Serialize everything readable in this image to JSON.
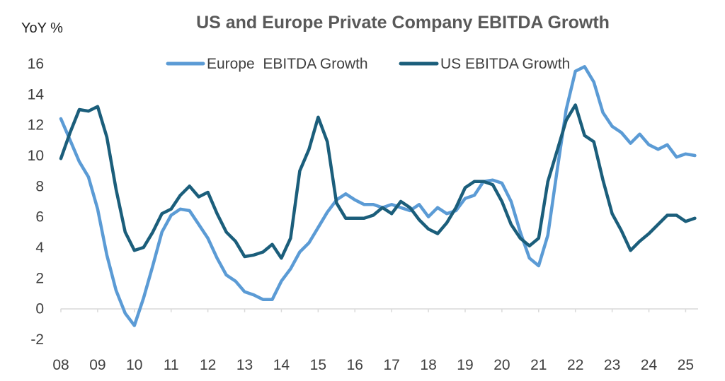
{
  "chart_data": {
    "type": "line",
    "title": "US and Europe Private Company EBITDA Growth",
    "ylabel": "YoY %",
    "xlabel": "",
    "ylim": [
      -2,
      16
    ],
    "xlim": [
      2008,
      2025.3
    ],
    "yticks": [
      "-2",
      "0",
      "2",
      "4",
      "6",
      "8",
      "10",
      "12",
      "14",
      "16"
    ],
    "xticks": [
      "08",
      "09",
      "10",
      "11",
      "12",
      "13",
      "14",
      "15",
      "16",
      "17",
      "18",
      "19",
      "20",
      "21",
      "22",
      "23",
      "24",
      "25"
    ],
    "grid": false,
    "legend_position": "top-center",
    "series": [
      {
        "name": "Europe  EBITDA Growth",
        "color": "#5b9bd5",
        "x": [
          2008.0,
          2008.25,
          2008.5,
          2008.75,
          2009.0,
          2009.25,
          2009.5,
          2009.75,
          2010.0,
          2010.25,
          2010.5,
          2010.75,
          2011.0,
          2011.25,
          2011.5,
          2011.75,
          2012.0,
          2012.25,
          2012.5,
          2012.75,
          2013.0,
          2013.25,
          2013.5,
          2013.75,
          2014.0,
          2014.25,
          2014.5,
          2014.75,
          2015.0,
          2015.25,
          2015.5,
          2015.75,
          2016.0,
          2016.25,
          2016.5,
          2016.75,
          2017.0,
          2017.25,
          2017.5,
          2017.75,
          2018.0,
          2018.25,
          2018.5,
          2018.75,
          2019.0,
          2019.25,
          2019.5,
          2019.75,
          2020.0,
          2020.25,
          2020.5,
          2020.75,
          2021.0,
          2021.25,
          2021.5,
          2021.75,
          2022.0,
          2022.25,
          2022.5,
          2022.75,
          2023.0,
          2023.25,
          2023.5,
          2023.75,
          2024.0,
          2024.25,
          2024.5,
          2024.75,
          2025.0,
          2025.25
        ],
        "values": [
          12.4,
          11.0,
          9.6,
          8.6,
          6.5,
          3.5,
          1.2,
          -0.3,
          -1.1,
          0.7,
          2.8,
          5.0,
          6.1,
          6.5,
          6.4,
          5.5,
          4.6,
          3.3,
          2.2,
          1.8,
          1.1,
          0.9,
          0.6,
          0.6,
          1.8,
          2.6,
          3.7,
          4.3,
          5.3,
          6.3,
          7.1,
          7.5,
          7.1,
          6.8,
          6.8,
          6.6,
          6.8,
          6.6,
          6.4,
          6.8,
          6.0,
          6.6,
          6.2,
          6.4,
          7.2,
          7.4,
          8.3,
          8.4,
          8.2,
          7.0,
          5.0,
          3.3,
          2.8,
          4.8,
          9.0,
          13.0,
          15.5,
          15.8,
          14.8,
          12.8,
          11.9,
          11.5,
          10.8,
          11.4,
          10.7,
          10.4,
          10.7,
          9.9,
          10.1,
          10.0
        ]
      },
      {
        "name": "US EBITDA Growth",
        "color": "#1b5e7b",
        "x": [
          2008.0,
          2008.25,
          2008.5,
          2008.75,
          2009.0,
          2009.25,
          2009.5,
          2009.75,
          2010.0,
          2010.25,
          2010.5,
          2010.75,
          2011.0,
          2011.25,
          2011.5,
          2011.75,
          2012.0,
          2012.25,
          2012.5,
          2012.75,
          2013.0,
          2013.25,
          2013.5,
          2013.75,
          2014.0,
          2014.25,
          2014.5,
          2014.75,
          2015.0,
          2015.25,
          2015.5,
          2015.75,
          2016.0,
          2016.25,
          2016.5,
          2016.75,
          2017.0,
          2017.25,
          2017.5,
          2017.75,
          2018.0,
          2018.25,
          2018.5,
          2018.75,
          2019.0,
          2019.25,
          2019.5,
          2019.75,
          2020.0,
          2020.25,
          2020.5,
          2020.75,
          2021.0,
          2021.25,
          2021.5,
          2021.75,
          2022.0,
          2022.25,
          2022.5,
          2022.75,
          2023.0,
          2023.25,
          2023.5,
          2023.75,
          2024.0,
          2024.25,
          2024.5,
          2024.75,
          2025.0,
          2025.25
        ],
        "values": [
          9.8,
          11.5,
          13.0,
          12.9,
          13.2,
          11.2,
          7.8,
          5.0,
          3.8,
          4.0,
          5.0,
          6.2,
          6.5,
          7.4,
          8.0,
          7.3,
          7.6,
          6.2,
          5.0,
          4.4,
          3.4,
          3.5,
          3.7,
          4.2,
          3.3,
          4.6,
          9.0,
          10.4,
          12.5,
          10.9,
          6.9,
          5.9,
          5.9,
          5.9,
          6.1,
          6.6,
          6.2,
          7.0,
          6.6,
          5.8,
          5.2,
          4.9,
          5.6,
          6.6,
          7.9,
          8.3,
          8.3,
          8.1,
          7.0,
          5.5,
          4.6,
          4.1,
          4.6,
          8.3,
          10.3,
          12.3,
          13.3,
          11.3,
          10.9,
          8.4,
          6.2,
          5.1,
          3.8,
          4.4,
          4.9,
          5.5,
          6.1,
          6.1,
          5.7,
          5.9
        ]
      }
    ]
  }
}
